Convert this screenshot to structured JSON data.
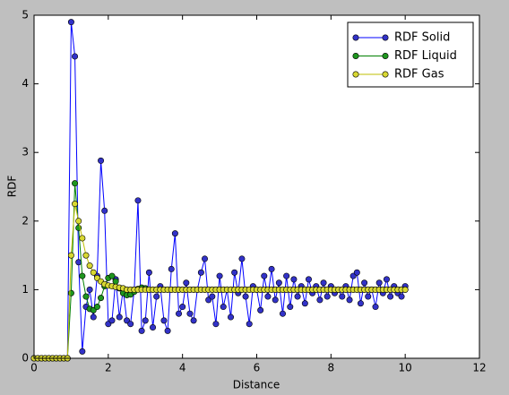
{
  "chart_data": {
    "type": "line",
    "xlabel": "Distance",
    "ylabel": "RDF",
    "x": [
      0,
      0.1,
      0.2,
      0.3,
      0.4,
      0.5,
      0.6,
      0.7,
      0.8,
      0.9,
      1.0,
      1.1,
      1.2,
      1.3,
      1.4,
      1.5,
      1.6,
      1.7,
      1.8,
      1.9,
      2.0,
      2.1,
      2.2,
      2.3,
      2.4,
      2.5,
      2.6,
      2.7,
      2.8,
      2.9,
      3.0,
      3.1,
      3.2,
      3.3,
      3.4,
      3.5,
      3.6,
      3.7,
      3.8,
      3.9,
      4.0,
      4.1,
      4.2,
      4.3,
      4.4,
      4.5,
      4.6,
      4.7,
      4.8,
      4.9,
      5.0,
      5.1,
      5.2,
      5.3,
      5.4,
      5.5,
      5.6,
      5.7,
      5.8,
      5.9,
      6.0,
      6.1,
      6.2,
      6.3,
      6.4,
      6.5,
      6.6,
      6.7,
      6.8,
      6.9,
      7.0,
      7.1,
      7.2,
      7.3,
      7.4,
      7.5,
      7.6,
      7.7,
      7.8,
      7.9,
      8.0,
      8.1,
      8.2,
      8.3,
      8.4,
      8.5,
      8.6,
      8.7,
      8.8,
      8.9,
      9.0,
      9.1,
      9.2,
      9.3,
      9.4,
      9.5,
      9.6,
      9.7,
      9.8,
      9.9,
      10.0
    ],
    "series": [
      {
        "name": "RDF Solid",
        "color": "#0000ff",
        "marker_color": "#3232c8",
        "values": [
          0,
          0,
          0,
          0,
          0,
          0,
          0,
          0,
          0,
          0,
          4.9,
          4.4,
          1.4,
          0.1,
          0.75,
          1.0,
          0.6,
          1.2,
          2.88,
          2.15,
          0.5,
          0.55,
          1.15,
          0.6,
          1.0,
          0.55,
          0.5,
          1.0,
          2.3,
          0.4,
          0.55,
          1.25,
          0.45,
          0.9,
          1.05,
          0.55,
          0.4,
          1.3,
          1.82,
          0.65,
          0.75,
          1.1,
          0.65,
          0.55,
          1.0,
          1.25,
          1.45,
          0.85,
          0.9,
          0.5,
          1.2,
          0.75,
          1.0,
          0.6,
          1.25,
          0.95,
          1.45,
          0.9,
          0.5,
          1.05,
          1.0,
          0.7,
          1.2,
          0.9,
          1.3,
          0.85,
          1.1,
          0.65,
          1.2,
          0.75,
          1.15,
          0.9,
          1.05,
          0.8,
          1.15,
          0.95,
          1.05,
          0.85,
          1.1,
          0.9,
          1.05,
          0.95,
          1.0,
          0.9,
          1.05,
          0.85,
          1.2,
          1.25,
          0.8,
          1.1,
          0.9,
          1.0,
          0.75,
          1.1,
          0.95,
          1.15,
          0.9,
          1.05,
          0.95,
          0.9,
          1.05
        ]
      },
      {
        "name": "RDF Liquid",
        "color": "#008000",
        "marker_color": "#1e961e",
        "values": [
          0,
          0,
          0,
          0,
          0,
          0,
          0,
          0,
          0,
          0,
          0.95,
          2.55,
          1.9,
          1.2,
          0.9,
          0.72,
          0.7,
          0.75,
          0.88,
          1.05,
          1.17,
          1.2,
          1.12,
          1.02,
          0.95,
          0.92,
          0.93,
          0.97,
          1.01,
          1.03,
          1.02,
          1.0,
          1,
          1,
          1,
          1,
          1,
          1,
          1,
          1,
          1,
          1,
          1,
          1,
          1,
          1,
          1,
          1,
          1,
          1,
          1,
          1,
          1,
          1,
          1,
          1,
          1,
          1,
          1,
          1,
          1,
          1,
          1,
          1,
          1,
          1,
          1,
          1,
          1,
          1,
          1,
          1,
          1,
          1,
          1,
          1,
          1,
          1,
          1,
          1,
          1,
          1,
          1,
          1,
          1,
          1,
          1,
          1,
          1,
          1,
          1,
          1,
          1,
          1,
          1,
          1,
          1,
          1,
          1,
          1,
          1
        ]
      },
      {
        "name": "RDF Gas",
        "color": "#bfbf00",
        "marker_color": "#d8d832",
        "values": [
          0,
          0,
          0,
          0,
          0,
          0,
          0,
          0,
          0,
          0,
          1.5,
          2.25,
          2.0,
          1.75,
          1.5,
          1.35,
          1.25,
          1.17,
          1.12,
          1.08,
          1.06,
          1.05,
          1.04,
          1.03,
          1.02,
          1,
          1,
          1,
          1,
          1,
          1,
          1,
          1,
          1,
          1,
          1,
          1,
          1,
          1,
          1,
          1,
          1,
          1,
          1,
          1,
          1,
          1,
          1,
          1,
          1,
          1,
          1,
          1,
          1,
          1,
          1,
          1,
          1,
          1,
          1,
          1,
          1,
          1,
          1,
          1,
          1,
          1,
          1,
          1,
          1,
          1,
          1,
          1,
          1,
          1,
          1,
          1,
          1,
          1,
          1,
          1,
          1,
          1,
          1,
          1,
          1,
          1,
          1,
          1,
          1,
          1,
          1,
          1,
          1,
          1,
          1,
          1,
          1,
          1,
          1,
          1
        ]
      }
    ],
    "xlim": [
      0,
      12
    ],
    "xticks": [
      0,
      2,
      4,
      6,
      8,
      10,
      12
    ],
    "ylim": [
      0,
      5
    ],
    "yticks": [
      0,
      1,
      2,
      3,
      4,
      5
    ],
    "legend": "upper right"
  }
}
